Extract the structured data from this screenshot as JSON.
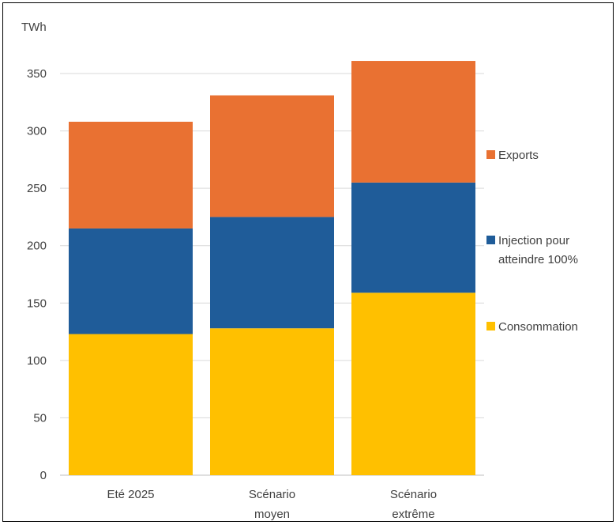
{
  "chart_data": {
    "type": "bar",
    "stacked": true,
    "ylabel": "TWh",
    "ylim": [
      0,
      350
    ],
    "yticks": [
      0,
      50,
      100,
      150,
      200,
      250,
      300,
      350
    ],
    "grid": true,
    "legend_position": "right",
    "categories": [
      [
        "Eté 2025"
      ],
      [
        "Scénario",
        "moyen"
      ],
      [
        "Scénario",
        "extrême"
      ]
    ],
    "series": [
      {
        "name": "Consommation",
        "color": "#FFC000",
        "values": [
          123,
          128,
          159
        ]
      },
      {
        "name": "Injection pour atteindre 100%",
        "legend_lines": [
          "Injection pour",
          "atteindre 100%"
        ],
        "color": "#1F5C99",
        "values": [
          92,
          97,
          96
        ]
      },
      {
        "name": "Exports",
        "color": "#E97132",
        "values": [
          93,
          106,
          106
        ]
      }
    ],
    "legend_order": [
      2,
      1,
      0
    ]
  }
}
